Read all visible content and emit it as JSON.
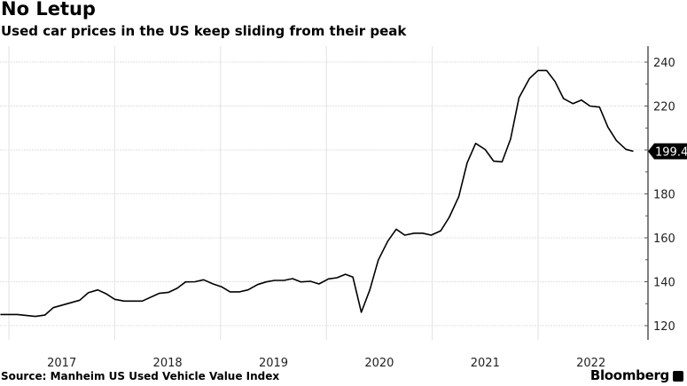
{
  "chart_data": {
    "type": "line",
    "title": "No Letup",
    "subtitle": "Used car prices in the US keep sliding from their peak",
    "source": "Source: Manheim US Used Vehicle Value Index",
    "brand": "Bloomberg",
    "xlabel": "",
    "ylabel": "",
    "xlim": [
      2016.92,
      2023.04
    ],
    "ylim": [
      114,
      247
    ],
    "y_axis_side": "right",
    "grid": true,
    "x_ticks": [
      {
        "year": 2017,
        "label": "2017"
      },
      {
        "year": 2018,
        "label": "2018"
      },
      {
        "year": 2019,
        "label": "2019"
      },
      {
        "year": 2020,
        "label": "2020"
      },
      {
        "year": 2021,
        "label": "2021"
      },
      {
        "year": 2022,
        "label": "2022"
      }
    ],
    "y_ticks": [
      {
        "value": 120,
        "label": "120"
      },
      {
        "value": 140,
        "label": "140"
      },
      {
        "value": 160,
        "label": "160"
      },
      {
        "value": 180,
        "label": "180"
      },
      {
        "value": 200,
        "label": "200"
      },
      {
        "value": 220,
        "label": "220"
      },
      {
        "value": 240,
        "label": "240"
      }
    ],
    "last_value_label": "199.4",
    "last_value": 199.4,
    "line_color": "#000000",
    "series": [
      {
        "name": "Manheim US Used Vehicle Value Index",
        "points": [
          [
            2016.92,
            125.1
          ],
          [
            2017.08,
            125.1
          ],
          [
            2017.25,
            124.2
          ],
          [
            2017.34,
            124.8
          ],
          [
            2017.42,
            128.2
          ],
          [
            2017.67,
            131.6
          ],
          [
            2017.75,
            135.0
          ],
          [
            2017.84,
            136.3
          ],
          [
            2017.92,
            134.5
          ],
          [
            2018.0,
            132.0
          ],
          [
            2018.09,
            131.2
          ],
          [
            2018.26,
            131.2
          ],
          [
            2018.42,
            134.7
          ],
          [
            2018.51,
            135.2
          ],
          [
            2018.59,
            137.0
          ],
          [
            2018.67,
            139.9
          ],
          [
            2018.76,
            140.0
          ],
          [
            2018.84,
            140.9
          ],
          [
            2018.93,
            139.0
          ],
          [
            2019.01,
            137.7
          ],
          [
            2019.09,
            135.4
          ],
          [
            2019.18,
            135.4
          ],
          [
            2019.26,
            136.3
          ],
          [
            2019.35,
            138.7
          ],
          [
            2019.43,
            139.9
          ],
          [
            2019.51,
            140.6
          ],
          [
            2019.6,
            140.6
          ],
          [
            2019.68,
            141.4
          ],
          [
            2019.76,
            139.9
          ],
          [
            2019.85,
            140.2
          ],
          [
            2019.93,
            139.0
          ],
          [
            2020.02,
            141.3
          ],
          [
            2020.1,
            141.8
          ],
          [
            2020.18,
            143.4
          ],
          [
            2020.25,
            142.1
          ],
          [
            2020.33,
            126.1
          ],
          [
            2020.41,
            136.3
          ],
          [
            2020.49,
            149.8
          ],
          [
            2020.58,
            158.5
          ],
          [
            2020.66,
            163.9
          ],
          [
            2020.74,
            161.2
          ],
          [
            2020.83,
            162.1
          ],
          [
            2020.91,
            162.1
          ],
          [
            2020.99,
            161.2
          ],
          [
            2021.08,
            163.2
          ],
          [
            2021.16,
            169.3
          ],
          [
            2021.25,
            178.7
          ],
          [
            2021.33,
            194.2
          ],
          [
            2021.41,
            203.0
          ],
          [
            2021.5,
            200.2
          ],
          [
            2021.58,
            194.9
          ],
          [
            2021.66,
            194.6
          ],
          [
            2021.74,
            205.0
          ],
          [
            2021.82,
            223.8
          ],
          [
            2021.92,
            232.6
          ],
          [
            2022.0,
            236.2
          ],
          [
            2022.08,
            236.2
          ],
          [
            2022.16,
            231.2
          ],
          [
            2022.24,
            223.4
          ],
          [
            2022.33,
            221.1
          ],
          [
            2022.41,
            222.7
          ],
          [
            2022.49,
            220.0
          ],
          [
            2022.58,
            219.5
          ],
          [
            2022.66,
            210.4
          ],
          [
            2022.74,
            204.3
          ],
          [
            2022.83,
            200.3
          ],
          [
            2022.9,
            199.4
          ]
        ]
      }
    ]
  }
}
